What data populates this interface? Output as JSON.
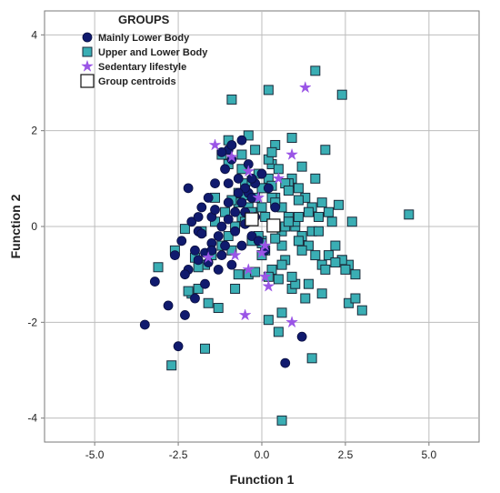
{
  "chart_data": {
    "type": "scatter",
    "xlabel": "Function 1",
    "ylabel": "Function 2",
    "xlim": [
      -6.5,
      6.5
    ],
    "ylim": [
      -4.5,
      4.5
    ],
    "x_ticks": [
      -5.0,
      -2.5,
      0.0,
      2.5,
      5.0
    ],
    "x_tick_labels": [
      "-5.0",
      "-2.5",
      "0.0",
      "2.5",
      "5.0"
    ],
    "y_ticks": [
      -4,
      -2,
      0,
      2,
      4
    ],
    "y_tick_labels": [
      "-4",
      "-2",
      "0",
      "2",
      "4"
    ],
    "grid": true,
    "legend": {
      "title": "GROUPS",
      "position": "top-left"
    },
    "colors": {
      "lower_body": "#101a6e",
      "upper_lower_body": "#3aaeb4",
      "sedentary": "#9a55e6",
      "centroid_fill": "#ffffff",
      "grid": "#bdbdbd"
    },
    "series": [
      {
        "name": "Mainly Lower Body",
        "marker": "circle",
        "x": [
          -3.5,
          -3.2,
          -2.8,
          -2.5,
          -2.3,
          -2.0,
          -2.2,
          -1.9,
          -1.7,
          -1.5,
          -1.3,
          -1.2,
          -1.0,
          -0.8,
          -0.6,
          -0.4,
          -0.2,
          0.0,
          -1.8,
          -1.6,
          -1.4,
          -1.1,
          -0.9,
          -0.7,
          -0.5,
          -0.3,
          -2.1,
          -2.4,
          -1.9,
          -1.5,
          -1.2,
          -0.9,
          -0.6,
          -0.3,
          0.1,
          -1.0,
          -1.3,
          -1.7,
          -2.0,
          -0.8,
          -0.5,
          -0.2,
          -1.1,
          -1.4,
          -2.3,
          -1.6,
          -0.7,
          -1.0,
          -1.9,
          -2.6,
          -0.4,
          0.2,
          -0.1,
          0.7,
          1.2,
          -1.2,
          -0.9,
          -0.6,
          -1.8,
          -1.5,
          -0.3,
          0.4,
          -2.2,
          -1.0,
          -0.5
        ],
        "y": [
          -2.05,
          -1.15,
          -1.65,
          -2.5,
          -1.85,
          -1.5,
          -0.9,
          -0.7,
          -0.55,
          -0.35,
          -0.2,
          0.0,
          0.15,
          0.3,
          0.5,
          0.7,
          0.9,
          1.1,
          0.4,
          0.6,
          0.9,
          1.2,
          1.4,
          1.0,
          0.8,
          0.6,
          0.1,
          -0.3,
          -0.1,
          0.2,
          -0.6,
          -0.8,
          -0.4,
          -0.2,
          -0.5,
          0.5,
          -0.9,
          -1.2,
          -0.5,
          -0.1,
          0.3,
          0.2,
          -0.4,
          0.35,
          -1.0,
          -0.75,
          0.7,
          1.6,
          0.2,
          -0.6,
          1.3,
          0.8,
          -0.3,
          -2.85,
          -2.3,
          1.55,
          1.7,
          1.8,
          -0.15,
          -0.5,
          1.0,
          0.4,
          0.8,
          0.9,
          0.05
        ]
      },
      {
        "name": "Upper and Lower Body",
        "marker": "square",
        "x": [
          -2.6,
          -3.1,
          -2.3,
          -2.1,
          -1.9,
          -1.7,
          -1.5,
          -1.2,
          -1.0,
          -0.8,
          -0.6,
          -0.4,
          -0.2,
          0.0,
          0.2,
          0.4,
          0.6,
          0.8,
          1.0,
          1.2,
          1.4,
          1.6,
          1.8,
          2.0,
          2.2,
          2.4,
          2.6,
          2.8,
          3.0,
          -1.8,
          -1.4,
          -1.1,
          -0.7,
          -0.5,
          -0.1,
          0.3,
          0.5,
          0.9,
          1.1,
          1.3,
          1.5,
          1.7,
          2.1,
          2.3,
          2.5,
          2.7,
          -0.3,
          0.1,
          0.7,
          1.9,
          -0.9,
          0.0,
          0.6,
          1.0,
          1.4,
          1.8,
          -0.6,
          -0.2,
          0.2,
          0.4,
          0.8,
          1.2,
          1.6,
          2.0,
          -1.3,
          -0.8,
          -0.4,
          0.3,
          0.5,
          0.9,
          1.3,
          -0.5,
          -0.1,
          0.1,
          0.3,
          0.7,
          1.1,
          1.5,
          -0.7,
          -0.3,
          0.0,
          0.4,
          0.8,
          1.2,
          0.2,
          0.6,
          1.0,
          -1.0,
          -0.4,
          0.3,
          0.7,
          1.1,
          -1.2,
          -0.6,
          0.0,
          0.6,
          1.4,
          1.8,
          -2.2,
          -1.6,
          2.6,
          2.8,
          0.2,
          0.5,
          1.5,
          2.4,
          -0.9,
          0.9,
          1.9,
          4.4,
          0.6,
          0.6,
          -1.7,
          1.6,
          -2.7,
          0.2,
          2.4,
          -0.9,
          -1.4,
          -0.3,
          -1.0,
          0.3,
          0.8,
          1.1,
          -0.2,
          0.4,
          -0.7,
          1.7,
          2.2,
          0.0,
          -0.5,
          -1.9,
          -2.0,
          0.9
        ],
        "y": [
          -0.5,
          -0.85,
          -0.05,
          -1.4,
          -1.3,
          -0.8,
          -0.6,
          -0.4,
          -0.2,
          0.0,
          0.2,
          0.4,
          0.6,
          0.8,
          1.0,
          0.6,
          0.4,
          0.2,
          0.0,
          -0.2,
          -0.4,
          -0.6,
          -0.8,
          -0.6,
          -0.4,
          -0.7,
          -0.8,
          -1.0,
          -1.75,
          -0.1,
          0.1,
          0.3,
          0.5,
          0.9,
          1.1,
          1.3,
          1.2,
          1.0,
          0.8,
          0.6,
          0.4,
          0.2,
          0.1,
          0.45,
          -0.9,
          0.1,
          -0.3,
          -0.5,
          -0.7,
          -0.9,
          -0.5,
          -0.3,
          -0.1,
          0.1,
          0.3,
          0.5,
          1.5,
          1.6,
          1.4,
          1.7,
          0.9,
          1.25,
          1.0,
          0.3,
          -1.7,
          -1.3,
          -1.0,
          -0.9,
          -1.1,
          -1.3,
          -1.5,
          0.1,
          -0.2,
          0.2,
          0.6,
          0.0,
          -0.3,
          -0.1,
          0.7,
          0.3,
          -0.6,
          0.5,
          0.1,
          -0.5,
          -1.05,
          -0.8,
          -1.2,
          1.8,
          1.9,
          1.55,
          0.9,
          0.55,
          1.5,
          1.2,
          0.4,
          -0.4,
          -1.2,
          -1.4,
          -1.35,
          -1.6,
          -1.6,
          -1.5,
          -1.95,
          -2.2,
          -2.75,
          2.75,
          2.65,
          1.85,
          1.6,
          0.25,
          -4.05,
          -1.8,
          -2.55,
          3.25,
          -2.9,
          2.85,
          -0.7,
          0.55,
          0.6,
          0.95,
          1.3,
          0.85,
          0.75,
          0.2,
          -0.95,
          -0.25,
          -1.0,
          -0.1,
          -0.75,
          -0.35,
          0.65,
          -0.85,
          -0.65,
          -1.05
        ]
      },
      {
        "name": "Sedentary lifestyle",
        "marker": "star",
        "x": [
          1.3,
          -1.4,
          -0.9,
          0.9,
          -0.4,
          0.5,
          -0.1,
          -0.3,
          -0.8,
          -1.6,
          0.1,
          -0.4,
          -0.5,
          0.2,
          0.1,
          0.0,
          0.9
        ],
        "y": [
          2.9,
          1.7,
          1.45,
          1.5,
          1.15,
          1.0,
          0.6,
          0.2,
          -0.6,
          -0.65,
          -0.4,
          -0.9,
          -1.85,
          -1.25,
          -1.05,
          -0.55,
          -2.0
        ]
      },
      {
        "name": "Group centroids",
        "marker": "hollow-square",
        "x": [
          -0.3,
          0.35
        ],
        "y": [
          0.15,
          0.02
        ]
      }
    ]
  }
}
